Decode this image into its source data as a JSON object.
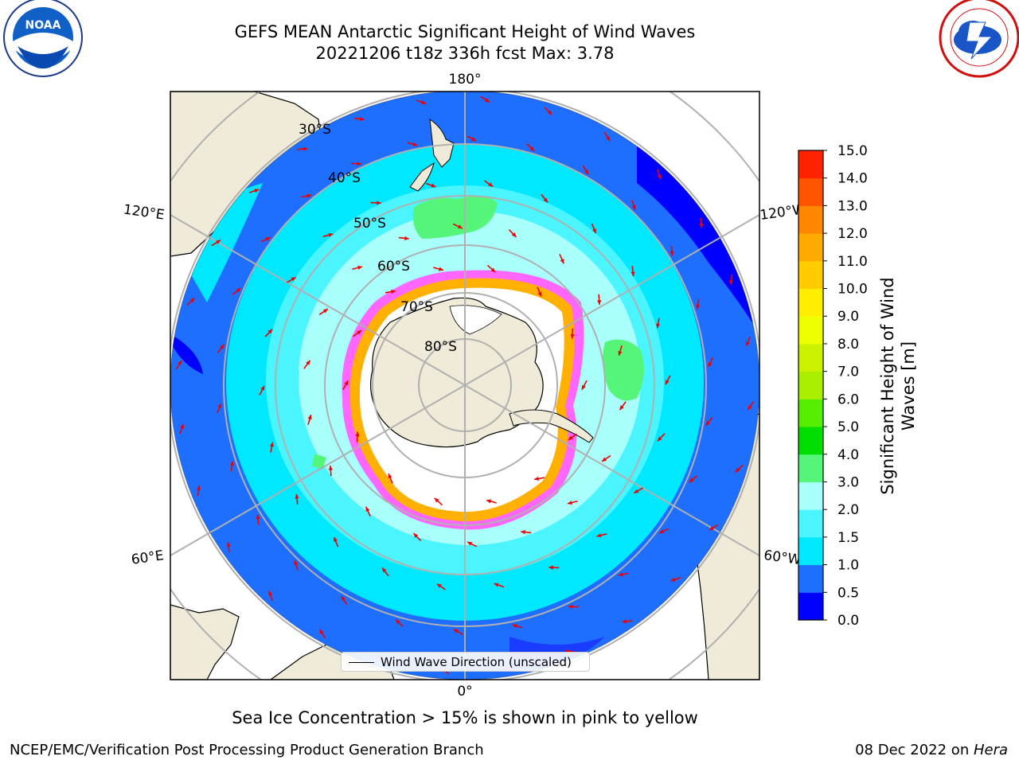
{
  "header": {
    "title_line1": "GEFS MEAN Antarctic Significant Height of Wind Waves",
    "title_line2": "20221206 t18z 336h fcst   Max: 3.78"
  },
  "logos": {
    "left": "noaa-logo",
    "right": "national-weather-service-logo",
    "left_text": "NOAA",
    "right_text": "NATIONAL WEATHER SERVICE"
  },
  "map": {
    "projection": "south-polar-stereographic",
    "longitude_labels": {
      "top": "180°",
      "bottom": "0°",
      "left_upper": "120°E",
      "left_lower": "60°E",
      "right_upper": "120°W",
      "right_lower": "60°W"
    },
    "latitude_labels": [
      "30°S",
      "40°S",
      "50°S",
      "60°S",
      "70°S",
      "80°S"
    ],
    "colors": {
      "land": "#efebd8",
      "ice_free_ocean_low": "#1e6fff",
      "ocean_deep_blue": "#0000ff",
      "ocean_mid": "#00e8ff",
      "ocean_light": "#a8fffb",
      "wave_green": "#55f57a",
      "sea_ice_pink": "#ff66ff",
      "sea_ice_orange": "#ffb000",
      "arrow": "#ee0000",
      "grid": "#b0b0b0"
    },
    "legend_label": "Wind Wave Direction (unscaled)"
  },
  "colorbar": {
    "label": "Significant Height of Wind Waves [m]",
    "ticks": [
      "0.0",
      "0.5",
      "1.0",
      "1.5",
      "2.0",
      "3.0",
      "4.0",
      "5.0",
      "6.0",
      "7.0",
      "8.0",
      "9.0",
      "10.0",
      "11.0",
      "12.0",
      "13.0",
      "14.0",
      "15.0"
    ],
    "colors": [
      "#0000ff",
      "#1e6fff",
      "#00e8ff",
      "#4af5ff",
      "#a8fffb",
      "#55f57a",
      "#00dd00",
      "#55ee00",
      "#aaee00",
      "#ccf200",
      "#eeff00",
      "#ffee00",
      "#ffcc00",
      "#ffaa00",
      "#ff8800",
      "#ff5500",
      "#ff2200"
    ]
  },
  "footer": {
    "note": "Sea Ice Concentration > 15% is shown in pink to yellow",
    "credit": "NCEP/EMC/Verification Post Processing Product Generation Branch",
    "date_prefix": "08 Dec 2022 on ",
    "date_host": "Hera"
  }
}
